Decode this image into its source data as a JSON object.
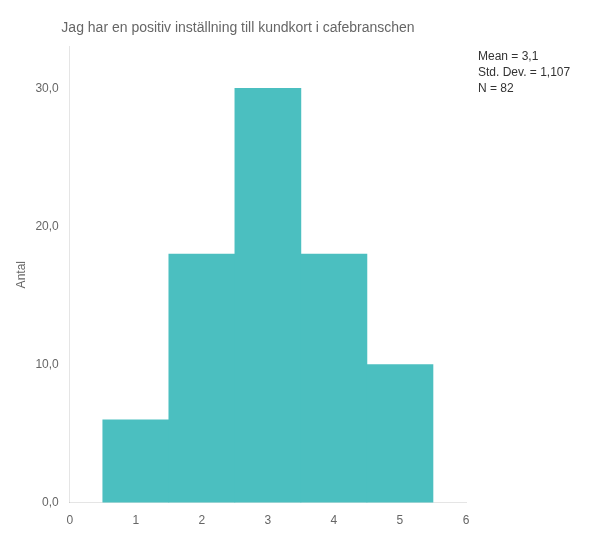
{
  "chart_data": {
    "type": "bar",
    "title": "Jag har en positiv inställning till kundkort i cafebranschen",
    "ylabel": "Antal",
    "x": [
      1,
      2,
      3,
      4,
      5
    ],
    "values": [
      6,
      18,
      30,
      18,
      10
    ],
    "color": "#4BBFC0",
    "xlim": [
      0,
      6
    ],
    "xticks": [
      0,
      1,
      2,
      3,
      4,
      5,
      6
    ],
    "ylim": [
      0,
      33
    ],
    "yticks": [
      {
        "value": 0,
        "label": "0,0"
      },
      {
        "value": 10,
        "label": "10,0"
      },
      {
        "value": 20,
        "label": "20,0"
      },
      {
        "value": 30,
        "label": "30,0"
      }
    ],
    "annotation": "Mean = 3,1\nStd. Dev. = 1,107\nN = 82",
    "grid": false
  }
}
